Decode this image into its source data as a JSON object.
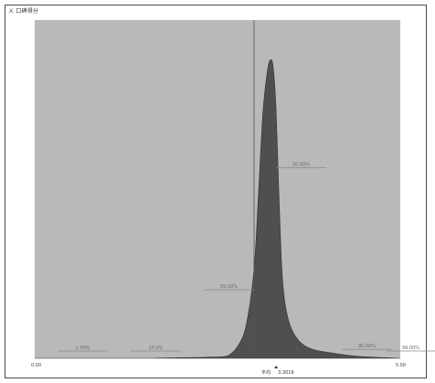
{
  "window": {
    "title": "ㄨ 口碑得分"
  },
  "chart_data": {
    "type": "area",
    "title": "",
    "xlabel": "",
    "ylabel": "",
    "grid": false,
    "x_tick_labels": [
      "0.00",
      "5.00"
    ],
    "xlim": [
      0,
      5
    ],
    "ylim": [
      0,
      1
    ],
    "x": [
      0.0,
      0.4,
      0.8,
      1.2,
      1.6,
      2.0,
      2.4,
      2.65,
      2.8,
      2.9,
      3.0,
      3.06,
      3.12,
      3.18,
      3.22,
      3.26,
      3.3,
      3.34,
      3.38,
      3.42,
      3.48,
      3.55,
      3.65,
      3.8,
      4.0,
      4.3,
      4.6,
      5.0
    ],
    "y": [
      0.0,
      0.0,
      0.0,
      0.0,
      0.0,
      0.002,
      0.004,
      0.01,
      0.05,
      0.12,
      0.3,
      0.55,
      0.82,
      0.96,
      1.0,
      0.98,
      0.84,
      0.55,
      0.3,
      0.19,
      0.12,
      0.08,
      0.05,
      0.03,
      0.02,
      0.01,
      0.004,
      0.0
    ],
    "mean_marker": {
      "label": "平均",
      "value": "3.3016",
      "x": 3.3016
    },
    "reference_line": {
      "x": 3.0
    },
    "percentile_labels": [
      {
        "text": "10.0%",
        "x": 2.0,
        "y": 0.0,
        "side": "left"
      },
      {
        "text": "1.00%",
        "x": 1.0,
        "y": 0.0,
        "side": "left"
      },
      {
        "text": "25.00%",
        "x": 3.0,
        "y": 0.23,
        "side": "left"
      },
      {
        "text": "50.00%",
        "x": 3.3,
        "y": 0.64,
        "side": "right"
      },
      {
        "text": "90.00%",
        "x": 4.2,
        "y": 0.03,
        "side": "right"
      },
      {
        "text": "99.00%",
        "x": 4.8,
        "y": 0.0,
        "side": "right"
      }
    ],
    "colors": {
      "plot_background": "#b9b9b9",
      "area_fill": "#4f4f4f",
      "area_stroke": "#303030",
      "reference_line": "#555555",
      "annotation_line": "#8a8a8a"
    }
  }
}
